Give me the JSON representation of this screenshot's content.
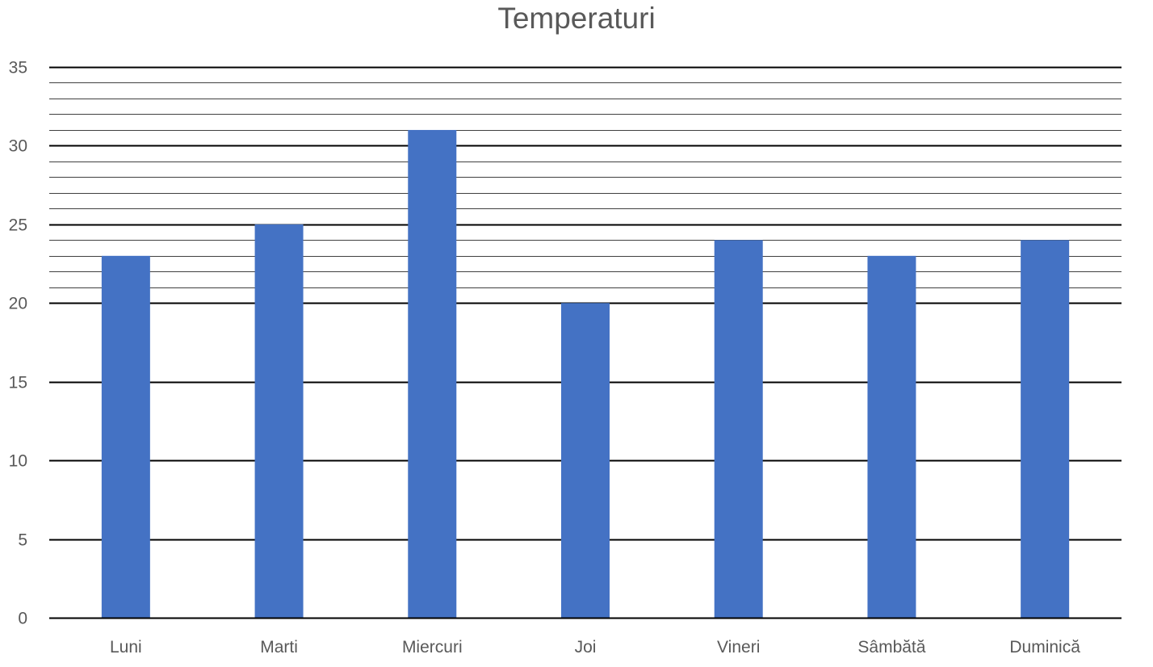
{
  "chart_data": {
    "type": "bar",
    "title": "Temperaturi",
    "xlabel": "",
    "ylabel": "",
    "categories": [
      "Luni",
      "Marti",
      "Miercuri",
      "Joi",
      "Vineri",
      "Sâmbătă",
      "Duminică"
    ],
    "series": [
      {
        "values": [
          23,
          25,
          31,
          20,
          24,
          23,
          24
        ],
        "color": "#4472C4"
      }
    ],
    "ylim": [
      0,
      35
    ],
    "yticks": [
      0,
      5,
      10,
      15,
      20,
      25,
      30,
      35
    ],
    "major_gridlines": true,
    "minor_gridlines": true,
    "minor_gridline_step": 1,
    "minor_gridline_range": [
      20,
      35
    ],
    "legend": "none"
  }
}
